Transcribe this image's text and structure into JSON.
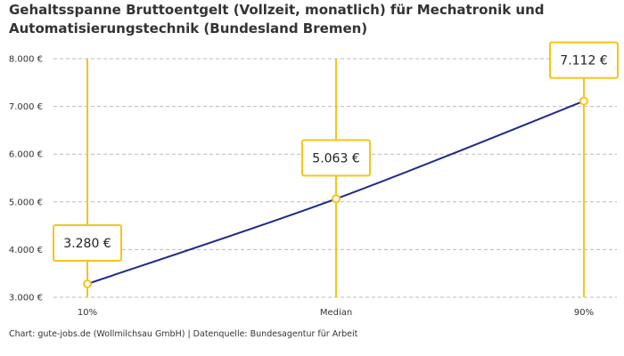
{
  "title": "Gehaltsspanne Bruttoentgelt (Vollzeit, monatlich) für Mechatronik und Automatisierungstechnik (Bundesland Bremen)",
  "source": "Chart: gute-jobs.de (Wollmilchsau GmbH) | Datenquelle: Bundesagentur für Arbeit",
  "chart_data": {
    "type": "line",
    "title": "Gehaltsspanne Bruttoentgelt (Vollzeit, monatlich) für Mechatronik und Automatisierungstechnik (Bundesland Bremen)",
    "categories": [
      "10%",
      "Median",
      "90%"
    ],
    "values": [
      3280,
      5063,
      7112
    ],
    "value_labels": [
      "3.280 €",
      "5.063 €",
      "7.112 €"
    ],
    "y_ticks": [
      3000,
      4000,
      5000,
      6000,
      7000,
      8000
    ],
    "y_tick_labels": [
      "3.000 €",
      "4.000 €",
      "5.000 €",
      "6.000 €",
      "7.000 €",
      "8.000 €"
    ],
    "ylim": [
      3000,
      8000
    ],
    "grid": true,
    "colors": {
      "line": "#1f2a8c",
      "highlight": "#f5c518",
      "grid": "#bbbbbb"
    }
  }
}
